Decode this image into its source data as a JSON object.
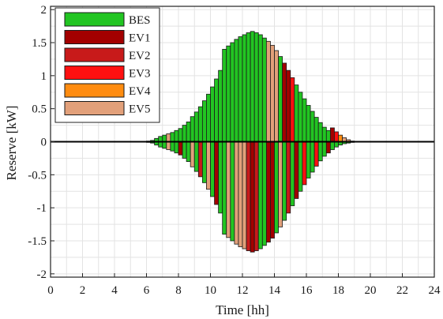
{
  "chart_data": {
    "type": "bar",
    "stacked": true,
    "title": "",
    "xlabel": "Time [hh]",
    "ylabel": "Reserve [kW]",
    "xlim": [
      0,
      24
    ],
    "ylim": [
      -2.05,
      2.05
    ],
    "xticks": [
      "0",
      "2",
      "4",
      "6",
      "8",
      "10",
      "12",
      "14",
      "16",
      "18",
      "20",
      "22",
      "24"
    ],
    "yticks": [
      "-2",
      "-1.5",
      "-1",
      "-0.5",
      "0",
      "0.5",
      "1",
      "1.5",
      "2"
    ],
    "grid": true,
    "legend_position": "top-left",
    "bar_width_hours": 0.25,
    "legend": [
      {
        "name": "BES",
        "color": "#22c522"
      },
      {
        "name": "EV1",
        "color": "#a30000"
      },
      {
        "name": "EV2",
        "color": "#c81a1a"
      },
      {
        "name": "EV3",
        "color": "#ff1010"
      },
      {
        "name": "EV4",
        "color": "#ff8c10"
      },
      {
        "name": "EV5",
        "color": "#e2a07a"
      }
    ],
    "positive_bars": [
      {
        "t": 6.0,
        "value": 0.01,
        "source": "BES"
      },
      {
        "t": 6.25,
        "value": 0.02,
        "source": "BES"
      },
      {
        "t": 6.5,
        "value": 0.05,
        "source": "BES"
      },
      {
        "t": 6.75,
        "value": 0.08,
        "source": "BES"
      },
      {
        "t": 7.0,
        "value": 0.1,
        "source": "BES"
      },
      {
        "t": 7.25,
        "value": 0.12,
        "source": "EV5"
      },
      {
        "t": 7.5,
        "value": 0.14,
        "source": "BES"
      },
      {
        "t": 7.75,
        "value": 0.17,
        "source": "BES"
      },
      {
        "t": 8.0,
        "value": 0.2,
        "source": "BES"
      },
      {
        "t": 8.25,
        "value": 0.25,
        "source": "BES"
      },
      {
        "t": 8.5,
        "value": 0.3,
        "source": "BES"
      },
      {
        "t": 8.75,
        "value": 0.38,
        "source": "BES"
      },
      {
        "t": 9.0,
        "value": 0.45,
        "source": "BES"
      },
      {
        "t": 9.25,
        "value": 0.53,
        "source": "BES"
      },
      {
        "t": 9.5,
        "value": 0.62,
        "source": "BES"
      },
      {
        "t": 9.75,
        "value": 0.72,
        "source": "BES"
      },
      {
        "t": 10.0,
        "value": 0.83,
        "source": "BES"
      },
      {
        "t": 10.25,
        "value": 0.95,
        "source": "BES"
      },
      {
        "t": 10.5,
        "value": 1.08,
        "source": "BES"
      },
      {
        "t": 10.75,
        "value": 1.4,
        "source": "BES"
      },
      {
        "t": 11.0,
        "value": 1.45,
        "source": "BES"
      },
      {
        "t": 11.25,
        "value": 1.5,
        "source": "BES"
      },
      {
        "t": 11.5,
        "value": 1.55,
        "source": "BES"
      },
      {
        "t": 11.75,
        "value": 1.59,
        "source": "BES"
      },
      {
        "t": 12.0,
        "value": 1.62,
        "source": "BES"
      },
      {
        "t": 12.25,
        "value": 1.65,
        "source": "BES"
      },
      {
        "t": 12.5,
        "value": 1.67,
        "source": "BES"
      },
      {
        "t": 12.75,
        "value": 1.65,
        "source": "BES"
      },
      {
        "t": 13.0,
        "value": 1.62,
        "source": "BES"
      },
      {
        "t": 13.25,
        "value": 1.57,
        "source": "BES"
      },
      {
        "t": 13.5,
        "value": 1.52,
        "source": "EV5"
      },
      {
        "t": 13.75,
        "value": 1.46,
        "source": "EV5"
      },
      {
        "t": 14.0,
        "value": 1.38,
        "source": "EV5"
      },
      {
        "t": 14.25,
        "value": 1.29,
        "source": "BES"
      },
      {
        "t": 14.5,
        "value": 1.19,
        "source": "EV1"
      },
      {
        "t": 14.75,
        "value": 1.08,
        "source": "EV1"
      },
      {
        "t": 15.0,
        "value": 0.97,
        "source": "EV3"
      },
      {
        "t": 15.25,
        "value": 0.86,
        "source": "BES"
      },
      {
        "t": 15.5,
        "value": 0.75,
        "source": "BES"
      },
      {
        "t": 15.75,
        "value": 0.65,
        "source": "BES"
      },
      {
        "t": 16.0,
        "value": 0.55,
        "source": "BES"
      },
      {
        "t": 16.25,
        "value": 0.46,
        "source": "BES"
      },
      {
        "t": 16.5,
        "value": 0.37,
        "source": "BES"
      },
      {
        "t": 16.75,
        "value": 0.29,
        "source": "BES"
      },
      {
        "t": 17.0,
        "value": 0.22,
        "source": "BES"
      },
      {
        "t": 17.25,
        "value": 0.17,
        "source": "BES"
      },
      {
        "t": 17.5,
        "value": 0.21,
        "source": "EV1"
      },
      {
        "t": 17.75,
        "value": 0.15,
        "source": "EV3"
      },
      {
        "t": 18.0,
        "value": 0.1,
        "source": "EV4"
      },
      {
        "t": 18.25,
        "value": 0.06,
        "source": "EV5"
      },
      {
        "t": 18.5,
        "value": 0.03,
        "source": "EV5"
      },
      {
        "t": 18.75,
        "value": 0.01,
        "source": "EV5"
      }
    ],
    "negative_bars": [
      {
        "t": 6.0,
        "value": -0.01,
        "source": "BES"
      },
      {
        "t": 6.25,
        "value": -0.02,
        "source": "BES"
      },
      {
        "t": 6.5,
        "value": -0.05,
        "source": "BES"
      },
      {
        "t": 6.75,
        "value": -0.08,
        "source": "BES"
      },
      {
        "t": 7.0,
        "value": -0.1,
        "source": "BES"
      },
      {
        "t": 7.25,
        "value": -0.12,
        "source": "EV5"
      },
      {
        "t": 7.5,
        "value": -0.14,
        "source": "BES"
      },
      {
        "t": 7.75,
        "value": -0.17,
        "source": "BES"
      },
      {
        "t": 8.0,
        "value": -0.2,
        "source": "EV1"
      },
      {
        "t": 8.25,
        "value": -0.25,
        "source": "BES"
      },
      {
        "t": 8.5,
        "value": -0.3,
        "source": "BES"
      },
      {
        "t": 8.75,
        "value": -0.38,
        "source": "EV5"
      },
      {
        "t": 9.0,
        "value": -0.45,
        "source": "BES"
      },
      {
        "t": 9.25,
        "value": -0.53,
        "source": "EV2"
      },
      {
        "t": 9.5,
        "value": -0.62,
        "source": "BES"
      },
      {
        "t": 9.75,
        "value": -0.72,
        "source": "EV5"
      },
      {
        "t": 10.0,
        "value": -0.83,
        "source": "BES"
      },
      {
        "t": 10.25,
        "value": -0.95,
        "source": "EV1"
      },
      {
        "t": 10.5,
        "value": -1.08,
        "source": "BES"
      },
      {
        "t": 10.75,
        "value": -1.4,
        "source": "BES"
      },
      {
        "t": 11.0,
        "value": -1.45,
        "source": "EV5"
      },
      {
        "t": 11.25,
        "value": -1.5,
        "source": "BES"
      },
      {
        "t": 11.5,
        "value": -1.55,
        "source": "EV5"
      },
      {
        "t": 11.75,
        "value": -1.59,
        "source": "EV5"
      },
      {
        "t": 12.0,
        "value": -1.62,
        "source": "EV5"
      },
      {
        "t": 12.25,
        "value": -1.65,
        "source": "EV2"
      },
      {
        "t": 12.5,
        "value": -1.67,
        "source": "EV1"
      },
      {
        "t": 12.75,
        "value": -1.65,
        "source": "EV2"
      },
      {
        "t": 13.0,
        "value": -1.62,
        "source": "BES"
      },
      {
        "t": 13.25,
        "value": -1.57,
        "source": "BES"
      },
      {
        "t": 13.5,
        "value": -1.52,
        "source": "EV1"
      },
      {
        "t": 13.75,
        "value": -1.46,
        "source": "EV1"
      },
      {
        "t": 14.0,
        "value": -1.38,
        "source": "BES"
      },
      {
        "t": 14.25,
        "value": -1.29,
        "source": "EV5"
      },
      {
        "t": 14.5,
        "value": -1.19,
        "source": "BES"
      },
      {
        "t": 14.75,
        "value": -1.08,
        "source": "EV2"
      },
      {
        "t": 15.0,
        "value": -0.97,
        "source": "BES"
      },
      {
        "t": 15.25,
        "value": -0.86,
        "source": "EV1"
      },
      {
        "t": 15.5,
        "value": -0.75,
        "source": "BES"
      },
      {
        "t": 15.75,
        "value": -0.65,
        "source": "EV3"
      },
      {
        "t": 16.0,
        "value": -0.55,
        "source": "BES"
      },
      {
        "t": 16.25,
        "value": -0.46,
        "source": "BES"
      },
      {
        "t": 16.5,
        "value": -0.37,
        "source": "EV3"
      },
      {
        "t": 16.75,
        "value": -0.29,
        "source": "BES"
      },
      {
        "t": 17.0,
        "value": -0.22,
        "source": "BES"
      },
      {
        "t": 17.25,
        "value": -0.17,
        "source": "EV1"
      },
      {
        "t": 17.5,
        "value": -0.12,
        "source": "BES"
      },
      {
        "t": 17.75,
        "value": -0.08,
        "source": "BES"
      },
      {
        "t": 18.0,
        "value": -0.05,
        "source": "BES"
      },
      {
        "t": 18.25,
        "value": -0.03,
        "source": "BES"
      },
      {
        "t": 18.5,
        "value": -0.02,
        "source": "BES"
      },
      {
        "t": 18.75,
        "value": -0.01,
        "source": "BES"
      }
    ]
  }
}
